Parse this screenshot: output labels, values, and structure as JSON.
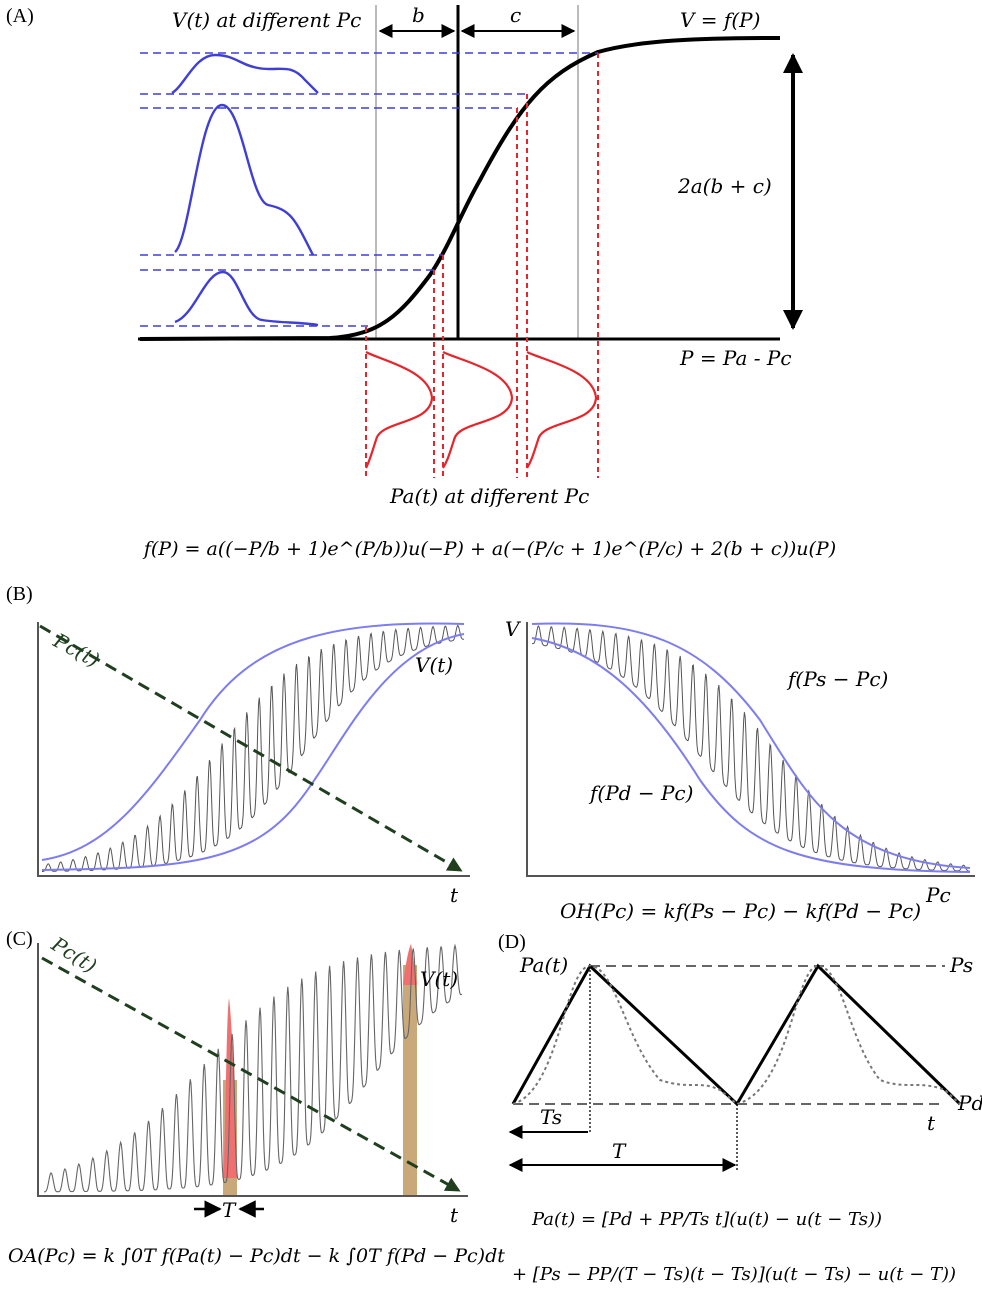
{
  "panel_a": {
    "label": "(A)",
    "v_title": "V(t) at different Pc",
    "curve_label": "V = f(P)",
    "b_label": "b",
    "c_label": "c",
    "amp_label": "2a(b + c)",
    "axis_label": "P = Pa - Pc",
    "pa_title": "Pa(t) at different Pc",
    "formula": "f(P) = a((−P/b + 1)e^(P/b))u(−P) + a(−(P/c + 1)e^(P/c) + 2(b + c))u(P)"
  },
  "panel_b": {
    "label": "(B)",
    "left_pc_label": "Pc(t)",
    "left_v_label": "V(t)",
    "left_x_label": "t",
    "right_y_label": "V",
    "right_upper_label": "f(Ps − Pc)",
    "right_lower_label": "f(Pd − Pc)",
    "right_x_label": "Pc",
    "formula": "OH(Pc) = kf(Ps − Pc) − kf(Pd − Pc)"
  },
  "panel_c": {
    "label": "(C)",
    "pc_label": "Pc(t)",
    "v_label": "V(t)",
    "x_label": "t",
    "period_label": "T",
    "formula": "OA(Pc) = k ∫0T f(Pa(t) − Pc)dt − k ∫0T f(Pd − Pc)dt"
  },
  "panel_d": {
    "label": "(D)",
    "pa_label": "Pa(t)",
    "ps_label": "Ps",
    "pd_label": "Pd",
    "t_label": "t",
    "ts_label": "Ts",
    "period_label": "T",
    "formula_line1": "Pa(t) = [Pd + PP/Ts t](u(t) − u(t − Ts))",
    "formula_line2": "+ [Ps − PP/(T − Ts)(t − Ts)](u(t − Ts) − u(t − T))"
  },
  "colors": {
    "blue": "#3f3fd6",
    "light_blue": "#8b8bf0",
    "red": "#e8242b",
    "dark_green": "#1f3f1f",
    "formula_blue": "#2222dd",
    "formula_red": "#e8242b",
    "formula_brown": "#a0741c",
    "highlight_red": "#f07070",
    "highlight_tan": "#c9a97a"
  }
}
